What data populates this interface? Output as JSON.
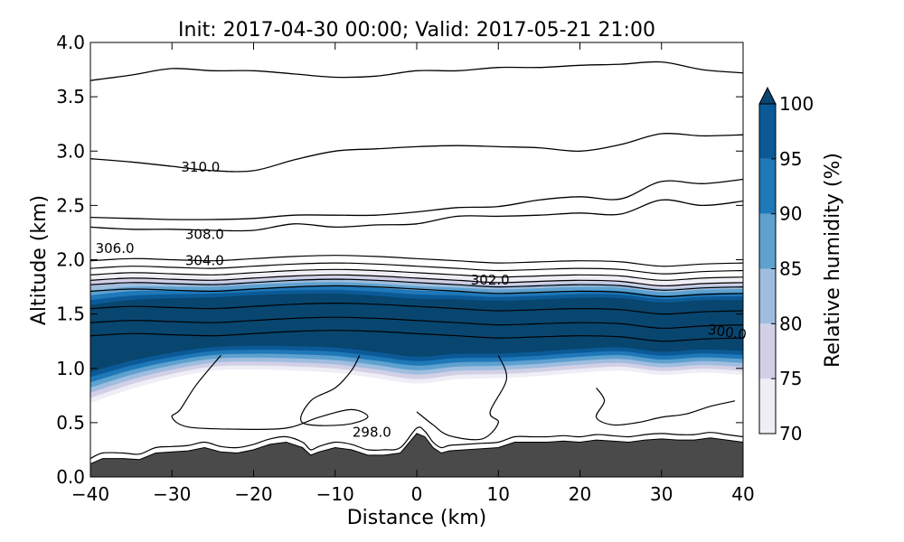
{
  "chart_data": {
    "type": "contour",
    "title": "Init: 2017-04-30 00:00; Valid: 2017-05-21 21:00",
    "xlabel": "Distance (km)",
    "ylabel": "Altitude (km)",
    "xlim": [
      -40,
      40
    ],
    "ylim": [
      0.0,
      4.0
    ],
    "xticks": [
      "−40",
      "−30",
      "−20",
      "−10",
      "0",
      "10",
      "20",
      "30",
      "40"
    ],
    "yticks": [
      "0.0",
      "0.5",
      "1.0",
      "1.5",
      "2.0",
      "2.5",
      "3.0",
      "3.5",
      "4.0"
    ],
    "colorbar": {
      "label": "Relative humidity (%)",
      "ticks": [
        "70",
        "75",
        "80",
        "85",
        "90",
        "95",
        "100"
      ],
      "levels": [
        70,
        75,
        80,
        85,
        90,
        95,
        100
      ],
      "colors": [
        "#efedf5",
        "#d2d0e6",
        "#9fbddf",
        "#5ea1cf",
        "#1f78b8",
        "#0b5a97",
        "#08466f"
      ],
      "extend": "max"
    },
    "theta_labels": [
      {
        "text": "310.0",
        "x": -26.5,
        "y": 2.82
      },
      {
        "text": "308.0",
        "x": -26.0,
        "y": 2.2
      },
      {
        "text": "306.0",
        "x": -37.0,
        "y": 2.07
      },
      {
        "text": "304.0",
        "x": -26.0,
        "y": 1.96
      },
      {
        "text": "302.0",
        "x": 9.0,
        "y": 1.78
      },
      {
        "text": "300.0",
        "x": 38.0,
        "y": 1.3
      },
      {
        "text": "298.0",
        "x": -5.5,
        "y": 0.38
      }
    ],
    "terrain": {
      "x": [
        -40,
        -38.5,
        -36,
        -34,
        -32,
        -30,
        -28,
        -26,
        -24,
        -22,
        -20,
        -18,
        -16,
        -14,
        -13,
        -12,
        -10,
        -8,
        -6,
        -4,
        -2,
        0,
        1,
        2,
        3,
        4,
        6,
        8,
        10,
        12,
        14,
        16,
        18,
        20,
        22,
        24,
        26,
        28,
        30,
        32,
        34,
        36,
        38,
        40
      ],
      "y": [
        0.12,
        0.17,
        0.17,
        0.16,
        0.22,
        0.23,
        0.24,
        0.27,
        0.23,
        0.22,
        0.25,
        0.3,
        0.32,
        0.27,
        0.2,
        0.23,
        0.27,
        0.25,
        0.2,
        0.2,
        0.22,
        0.4,
        0.37,
        0.27,
        0.22,
        0.24,
        0.25,
        0.26,
        0.27,
        0.32,
        0.32,
        0.32,
        0.33,
        0.32,
        0.34,
        0.33,
        0.32,
        0.34,
        0.35,
        0.34,
        0.34,
        0.36,
        0.34,
        0.32
      ]
    },
    "theta_isolines_y_at_x": {
      "x": [
        -40,
        -35,
        -30,
        -25,
        -20,
        -15,
        -10,
        -5,
        0,
        5,
        10,
        15,
        20,
        25,
        30,
        35,
        40
      ],
      "upper_lines": [
        [
          3.65,
          3.7,
          3.76,
          3.74,
          3.74,
          3.71,
          3.68,
          3.69,
          3.74,
          3.74,
          3.77,
          3.77,
          3.79,
          3.8,
          3.82,
          3.75,
          3.72
        ],
        [
          2.93,
          2.9,
          2.86,
          2.82,
          2.82,
          2.92,
          3.0,
          3.02,
          3.04,
          3.05,
          3.04,
          3.03,
          3.0,
          3.06,
          3.16,
          3.14,
          3.15
        ],
        [
          2.39,
          2.38,
          2.37,
          2.37,
          2.38,
          2.41,
          2.41,
          2.41,
          2.44,
          2.48,
          2.49,
          2.55,
          2.58,
          2.56,
          2.72,
          2.7,
          2.74
        ],
        [
          2.3,
          2.28,
          2.28,
          2.27,
          2.27,
          2.33,
          2.3,
          2.32,
          2.33,
          2.4,
          2.4,
          2.41,
          2.43,
          2.42,
          2.55,
          2.5,
          2.54
        ]
      ]
    },
    "rh_band": {
      "lower_x": [
        -40,
        -35,
        -30,
        -25,
        -20,
        -15,
        -10,
        -5,
        0,
        5,
        10,
        15,
        20,
        25,
        30,
        35,
        40
      ],
      "top_km": [
        1.75,
        1.77,
        1.76,
        1.75,
        1.77,
        1.79,
        1.8,
        1.79,
        1.77,
        1.75,
        1.73,
        1.74,
        1.75,
        1.74,
        1.7,
        1.72,
        1.73
      ],
      "bottom_km": [
        0.82,
        0.95,
        1.05,
        1.12,
        1.13,
        1.12,
        1.1,
        1.05,
        1.0,
        1.04,
        1.05,
        1.07,
        1.1,
        1.12,
        1.08,
        1.1,
        1.08
      ]
    }
  }
}
